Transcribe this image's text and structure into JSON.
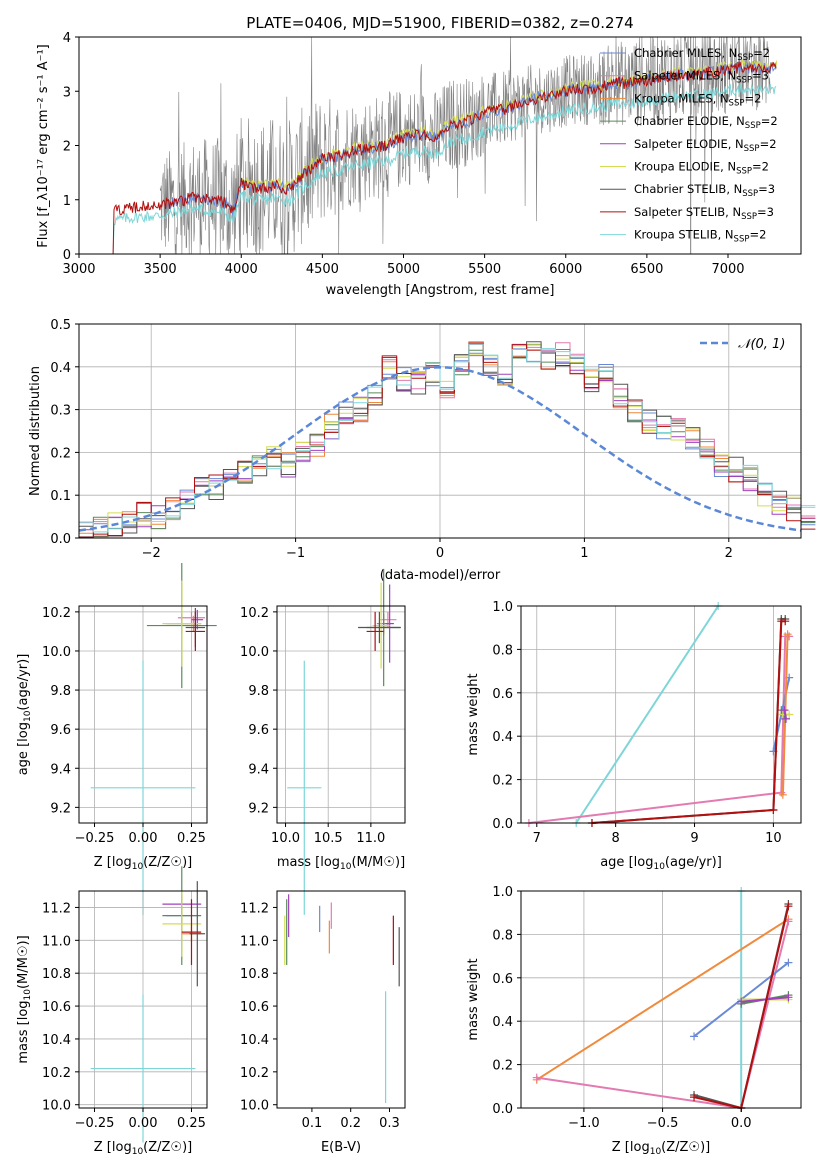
{
  "colors": {
    "chabrier_miles": "#6a8ad6",
    "salpeter_miles": "#e37ab0",
    "kroupa_miles": "#f08a3c",
    "chabrier_elodie": "#5b8a5b",
    "salpeter_elodie": "#a040c0",
    "kroupa_elodie": "#d4dc56",
    "chabrier_stelib": "#555555",
    "salpeter_stelib": "#b01010",
    "kroupa_stelib": "#7fd6d8",
    "observed": "#808080",
    "normal": "#5b88d6",
    "grid": "#b0b0b0"
  },
  "chart_data": [
    {
      "id": "spectrum",
      "type": "line",
      "title": "PLATE=0406, MJD=51900, FIBERID=0382, z=0.274",
      "xlabel": "wavelength [Angstrom, rest frame]",
      "ylabel": "Flux [f_λ10⁻¹⁷ erg cm⁻² s⁻¹ A⁻¹]",
      "xlim": [
        3000,
        7450
      ],
      "ylim": [
        0,
        4
      ],
      "xticks": [
        "3000",
        "3500",
        "4000",
        "4500",
        "5000",
        "5500",
        "6000",
        "6500",
        "7000"
      ],
      "yticks": [
        "0",
        "1",
        "2",
        "3",
        "4"
      ],
      "grid": false,
      "legend_position": "right",
      "series": [
        {
          "name": "Chabrier MILES, NSSP=2",
          "label_main": "Chabrier MILES, N",
          "label_sub": "SSP",
          "label_tail": "=2"
        },
        {
          "name": "Salpeter MILES, NSSP=3",
          "label_main": "Salpeter MILES, N",
          "label_sub": "SSP",
          "label_tail": "=3"
        },
        {
          "name": "Kroupa MILES, NSSP=2",
          "label_main": "Kroupa MILES, N",
          "label_sub": "SSP",
          "label_tail": "=2"
        },
        {
          "name": "Chabrier ELODIE, NSSP=2",
          "label_main": "Chabrier ELODIE, N",
          "label_sub": "SSP",
          "label_tail": "=2"
        },
        {
          "name": "Salpeter ELODIE, NSSP=2",
          "label_main": "Salpeter ELODIE, N",
          "label_sub": "SSP",
          "label_tail": "=2"
        },
        {
          "name": "Kroupa ELODIE, NSSP=2",
          "label_main": "Kroupa ELODIE, N",
          "label_sub": "SSP",
          "label_tail": "=2"
        },
        {
          "name": "Chabrier STELIB, NSSP=3",
          "label_main": "Chabrier STELIB, N",
          "label_sub": "SSP",
          "label_tail": "=3"
        },
        {
          "name": "Salpeter STELIB, NSSP=3",
          "label_main": "Salpeter STELIB, N",
          "label_sub": "SSP",
          "label_tail": "=3"
        },
        {
          "name": "Kroupa STELIB, NSSP=2",
          "label_main": "Kroupa STELIB, N",
          "label_sub": "SSP",
          "label_tail": "=2"
        }
      ],
      "model_continuum": {
        "x": [
          3210,
          3300,
          3400,
          3500,
          3600,
          3700,
          3800,
          3900,
          3950,
          4000,
          4100,
          4200,
          4300,
          4400,
          4500,
          4600,
          4700,
          4800,
          4900,
          5000,
          5100,
          5200,
          5300,
          5400,
          5500,
          5600,
          5700,
          5800,
          5900,
          6000,
          6100,
          6200,
          6300,
          6400,
          6500,
          6600,
          6700,
          6800,
          6900,
          7000,
          7100,
          7200,
          7300
        ],
        "y": [
          0.8,
          0.85,
          0.88,
          0.9,
          0.95,
          1.05,
          1.0,
          0.95,
          0.8,
          1.3,
          1.2,
          1.25,
          1.2,
          1.5,
          1.75,
          1.8,
          1.9,
          1.95,
          2.0,
          2.15,
          2.2,
          2.15,
          2.4,
          2.45,
          2.6,
          2.65,
          2.75,
          2.85,
          2.9,
          3.0,
          3.05,
          3.05,
          3.15,
          3.15,
          3.2,
          3.25,
          3.3,
          3.3,
          3.35,
          3.4,
          3.45,
          3.4,
          3.45
        ]
      },
      "observed_envelope": {
        "x": [
          3500,
          3700,
          3900,
          4100,
          4300,
          4500,
          4700,
          4900,
          5100,
          5300,
          5500,
          5700,
          5900,
          6100,
          6300,
          6500,
          6700,
          6900,
          7100,
          7250
        ],
        "amp": [
          0.9,
          1.0,
          1.1,
          1.2,
          1.2,
          1.1,
          0.9,
          0.9,
          0.8,
          0.8,
          0.7,
          0.6,
          0.6,
          0.6,
          0.7,
          0.8,
          0.8,
          0.8,
          0.7,
          0.7
        ]
      }
    },
    {
      "id": "residual_histogram",
      "type": "bar",
      "xlabel": "(data-model)/error",
      "ylabel": "Normed distribution",
      "xlim": [
        -2.5,
        2.5
      ],
      "ylim": [
        0,
        0.5
      ],
      "xticks": [
        "−2",
        "−1",
        "0",
        "1",
        "2"
      ],
      "yticks": [
        "0.0",
        "0.1",
        "0.2",
        "0.3",
        "0.4",
        "0.5"
      ],
      "grid": true,
      "legend_position": "top-right",
      "normal_label": "𝒩(0, 1)",
      "bin_width": 0.1,
      "bin_start": -2.5,
      "series_base": [
        0.012,
        0.02,
        0.03,
        0.04,
        0.055,
        0.05,
        0.07,
        0.09,
        0.13,
        0.12,
        0.14,
        0.15,
        0.17,
        0.19,
        0.17,
        0.2,
        0.22,
        0.26,
        0.29,
        0.3,
        0.34,
        0.4,
        0.37,
        0.36,
        0.38,
        0.35,
        0.41,
        0.44,
        0.4,
        0.38,
        0.43,
        0.44,
        0.42,
        0.43,
        0.4,
        0.37,
        0.38,
        0.33,
        0.3,
        0.27,
        0.26,
        0.25,
        0.23,
        0.21,
        0.17,
        0.16,
        0.14,
        0.1,
        0.08,
        0.07,
        0.05
      ]
    },
    {
      "id": "age_vs_Z",
      "type": "scatter",
      "xlabel": "Z [log10(Z/Z☉)]",
      "ylabel": "age  [log10(age/yr)]",
      "xlim": [
        -0.33,
        0.33
      ],
      "ylim": [
        9.12,
        10.23
      ],
      "xticks": [
        "−0.25",
        "0.00",
        "0.25"
      ],
      "xtick_values": [
        -0.25,
        0.0,
        0.25
      ],
      "yticks": [
        "9.2",
        "9.4",
        "9.6",
        "9.8",
        "10.0",
        "10.2"
      ],
      "ytick_values": [
        9.2,
        9.4,
        9.6,
        9.8,
        10.0,
        10.2
      ],
      "grid": true,
      "points": [
        {
          "series": "Kroupa STELIB, NSSP=2",
          "x": 0.0,
          "y": 9.3,
          "xerr": 0.27,
          "yerr": 0.65
        },
        {
          "series": "Chabrier MILES, NSSP=2",
          "x": 0.2,
          "y": 10.14,
          "xerr": 0.08,
          "yerr": 0.05
        },
        {
          "series": "Salpeter MILES, NSSP=3",
          "x": 0.25,
          "y": 10.17,
          "xerr": 0.07,
          "yerr": 0.03
        },
        {
          "series": "Kroupa MILES, NSSP=2",
          "x": 0.26,
          "y": 10.14,
          "xerr": 0.04,
          "yerr": 0.04
        },
        {
          "series": "Chabrier ELODIE, NSSP=2",
          "x": 0.2,
          "y": 10.13,
          "xerr": 0.18,
          "yerr": 0.32
        },
        {
          "series": "Salpeter ELODIE, NSSP=2",
          "x": 0.28,
          "y": 10.16,
          "xerr": 0.03,
          "yerr": 0.05
        },
        {
          "series": "Kroupa ELODIE, NSSP=2",
          "x": 0.2,
          "y": 10.14,
          "xerr": 0.1,
          "yerr": 0.22
        },
        {
          "series": "Chabrier STELIB, NSSP=3",
          "x": 0.27,
          "y": 10.12,
          "xerr": 0.05,
          "yerr": 0.1
        },
        {
          "series": "Salpeter STELIB, NSSP=3",
          "x": 0.27,
          "y": 10.1,
          "xerr": 0.05,
          "yerr": 0.1
        }
      ]
    },
    {
      "id": "age_vs_mass",
      "type": "scatter",
      "xlabel": "mass [log10(M/M☉)]",
      "ylabel": "",
      "xlim": [
        9.9,
        11.4
      ],
      "ylim": [
        9.12,
        10.23
      ],
      "xticks": [
        "10.0",
        "10.5",
        "11.0"
      ],
      "xtick_values": [
        10.0,
        10.5,
        11.0
      ],
      "yticks": [
        "9.2",
        "9.4",
        "9.6",
        "9.8",
        "10.0",
        "10.2"
      ],
      "ytick_values": [
        9.2,
        9.4,
        9.6,
        9.8,
        10.0,
        10.2
      ],
      "grid": true,
      "points": [
        {
          "series": "Kroupa STELIB, NSSP=2",
          "x": 10.22,
          "y": 9.3,
          "xerr": 0.2,
          "yerr": 0.65
        },
        {
          "series": "Chabrier MILES, NSSP=2",
          "x": 11.15,
          "y": 10.14,
          "xerr": 0.08,
          "yerr": 0.05
        },
        {
          "series": "Salpeter MILES, NSSP=3",
          "x": 11.2,
          "y": 10.16,
          "xerr": 0.1,
          "yerr": 0.04
        },
        {
          "series": "Kroupa MILES, NSSP=2",
          "x": 11.15,
          "y": 10.13,
          "xerr": 0.06,
          "yerr": 0.05
        },
        {
          "series": "Chabrier ELODIE, NSSP=2",
          "x": 11.15,
          "y": 10.12,
          "xerr": 0.2,
          "yerr": 0.3
        },
        {
          "series": "Salpeter ELODIE, NSSP=2",
          "x": 11.22,
          "y": 10.14,
          "xerr": 0.05,
          "yerr": 0.2
        },
        {
          "series": "Kroupa ELODIE, NSSP=2",
          "x": 11.12,
          "y": 10.13,
          "xerr": 0.1,
          "yerr": 0.22
        },
        {
          "series": "Chabrier STELIB, NSSP=3",
          "x": 11.1,
          "y": 10.12,
          "xerr": 0.25,
          "yerr": 0.08
        },
        {
          "series": "Salpeter STELIB, NSSP=3",
          "x": 11.05,
          "y": 10.1,
          "xerr": 0.1,
          "yerr": 0.1
        }
      ]
    },
    {
      "id": "weight_vs_age",
      "type": "line",
      "xlabel": "age  [log10(age/yr)]",
      "ylabel": "mass weight",
      "xlim": [
        6.8,
        10.35
      ],
      "ylim": [
        0,
        1
      ],
      "xticks": [
        "7",
        "8",
        "9",
        "10"
      ],
      "xtick_values": [
        7,
        8,
        9,
        10
      ],
      "yticks": [
        "0.0",
        "0.2",
        "0.4",
        "0.6",
        "0.8",
        "1.0"
      ],
      "ytick_values": [
        0,
        0.2,
        0.4,
        0.6,
        0.8,
        1.0
      ],
      "grid": true,
      "lines": [
        {
          "series": "Kroupa STELIB, NSSP=2",
          "x": [
            7.5,
            9.3
          ],
          "y": [
            0,
            1
          ]
        },
        {
          "series": "Salpeter MILES, NSSP=3",
          "x": [
            6.9,
            10.1,
            10.15,
            10.2
          ],
          "y": [
            0,
            0.14,
            0.86,
            0.86
          ]
        },
        {
          "series": "Chabrier MILES, NSSP=2",
          "x": [
            10.0,
            10.2
          ],
          "y": [
            0.33,
            0.67
          ]
        },
        {
          "series": "Kroupa MILES, NSSP=2",
          "x": [
            10.12,
            10.18
          ],
          "y": [
            0.13,
            0.87
          ]
        },
        {
          "series": "Chabrier ELODIE, NSSP=2",
          "x": [
            10.1,
            10.15
          ],
          "y": [
            0.52,
            0.48
          ]
        },
        {
          "series": "Kroupa ELODIE, NSSP=2",
          "x": [
            10.12,
            10.2
          ],
          "y": [
            0.5,
            0.5
          ]
        },
        {
          "series": "Salpeter ELODIE, NSSP=2",
          "x": [
            10.14,
            10.16
          ],
          "y": [
            0.52,
            0.48
          ]
        },
        {
          "series": "Chabrier STELIB, NSSP=3",
          "x": [
            7.7,
            10.0,
            10.1,
            10.15
          ],
          "y": [
            0,
            0.06,
            0.94,
            0.94
          ]
        },
        {
          "series": "Salpeter STELIB, NSSP=3",
          "x": [
            7.7,
            10.0,
            10.1,
            10.15
          ],
          "y": [
            0,
            0.06,
            0.93,
            0.93
          ]
        }
      ]
    },
    {
      "id": "mass_vs_Z",
      "type": "scatter",
      "xlabel": "Z [log10(Z/Z☉)]",
      "ylabel": "mass [log10(M/M☉)]",
      "xlim": [
        -0.33,
        0.33
      ],
      "ylim": [
        9.98,
        11.3
      ],
      "xticks": [
        "−0.25",
        "0.00",
        "0.25"
      ],
      "xtick_values": [
        -0.25,
        0.0,
        0.25
      ],
      "yticks": [
        "10.0",
        "10.2",
        "10.4",
        "10.6",
        "10.8",
        "11.0",
        "11.2"
      ],
      "ytick_values": [
        10.0,
        10.2,
        10.4,
        10.6,
        10.8,
        11.0,
        11.2
      ],
      "grid": true,
      "points": [
        {
          "series": "Kroupa STELIB, NSSP=2",
          "x": 0.0,
          "y": 10.22,
          "xerr": 0.27,
          "yerr": 0.45
        },
        {
          "series": "Chabrier MILES, NSSP=2",
          "x": 0.2,
          "y": 11.15,
          "xerr": 0.08,
          "yerr": 0.05
        },
        {
          "series": "Salpeter ELODIE, NSSP=2",
          "x": 0.2,
          "y": 11.22,
          "xerr": 0.1,
          "yerr": 0.06
        },
        {
          "series": "Chabrier ELODIE, NSSP=2",
          "x": 0.2,
          "y": 11.15,
          "xerr": 0.1,
          "yerr": 0.3
        },
        {
          "series": "Kroupa ELODIE, NSSP=2",
          "x": 0.2,
          "y": 11.1,
          "xerr": 0.1,
          "yerr": 0.2
        },
        {
          "series": "Kroupa MILES, NSSP=2",
          "x": 0.25,
          "y": 11.04,
          "xerr": 0.05,
          "yerr": 0.05
        },
        {
          "series": "Chabrier STELIB, NSSP=3",
          "x": 0.28,
          "y": 11.04,
          "xerr": 0.04,
          "yerr": 0.32
        },
        {
          "series": "Salpeter STELIB, NSSP=3",
          "x": 0.25,
          "y": 11.05,
          "xerr": 0.05,
          "yerr": 0.2
        }
      ]
    },
    {
      "id": "mass_vs_ebv",
      "type": "scatter",
      "xlabel": "E(B-V)",
      "ylabel": "",
      "xlim": [
        0.01,
        0.34
      ],
      "ylim": [
        9.98,
        11.3
      ],
      "xticks": [
        "0.1",
        "0.2",
        "0.3"
      ],
      "xtick_values": [
        0.1,
        0.2,
        0.3
      ],
      "yticks": [
        "10.0",
        "10.2",
        "10.4",
        "10.6",
        "10.8",
        "11.0",
        "11.2"
      ],
      "ytick_values": [
        10.0,
        10.2,
        10.4,
        10.6,
        10.8,
        11.0,
        11.2
      ],
      "grid": false,
      "points": [
        {
          "series": "Kroupa ELODIE, NSSP=2",
          "x": 0.03,
          "y": 11.0,
          "xerr": 0.0,
          "yerr": 0.15
        },
        {
          "series": "Salpeter ELODIE, NSSP=2",
          "x": 0.04,
          "y": 11.15,
          "xerr": 0.0,
          "yerr": 0.13
        },
        {
          "series": "Chabrier ELODIE, NSSP=2",
          "x": 0.035,
          "y": 11.05,
          "xerr": 0.0,
          "yerr": 0.2
        },
        {
          "series": "Chabrier MILES, NSSP=2",
          "x": 0.12,
          "y": 11.13,
          "xerr": 0.0,
          "yerr": 0.08
        },
        {
          "series": "Salpeter MILES, NSSP=3",
          "x": 0.15,
          "y": 11.15,
          "xerr": 0.0,
          "yerr": 0.08
        },
        {
          "series": "Kroupa MILES, NSSP=2",
          "x": 0.145,
          "y": 11.02,
          "xerr": 0.0,
          "yerr": 0.1
        },
        {
          "series": "Kroupa STELIB, NSSP=2",
          "x": 0.29,
          "y": 10.35,
          "xerr": 0.0,
          "yerr": 0.34
        },
        {
          "series": "Salpeter STELIB, NSSP=3",
          "x": 0.31,
          "y": 11.0,
          "xerr": 0.0,
          "yerr": 0.15
        },
        {
          "series": "Chabrier STELIB, NSSP=3",
          "x": 0.325,
          "y": 10.9,
          "xerr": 0.0,
          "yerr": 0.18
        }
      ]
    },
    {
      "id": "weight_vs_Z",
      "type": "line",
      "xlabel": "Z [log10(Z/Z☉)]",
      "ylabel": "mass weight",
      "xlim": [
        -1.4,
        0.38
      ],
      "ylim": [
        0,
        1
      ],
      "xticks": [
        "−1.0",
        "−0.5",
        "0.0"
      ],
      "xtick_values": [
        -1.0,
        -0.5,
        0.0
      ],
      "yticks": [
        "0.0",
        "0.2",
        "0.4",
        "0.6",
        "0.8",
        "1.0"
      ],
      "ytick_values": [
        0,
        0.2,
        0.4,
        0.6,
        0.8,
        1.0
      ],
      "grid": true,
      "lines": [
        {
          "series": "Kroupa STELIB, NSSP=2",
          "x": [
            0,
            0
          ],
          "y": [
            0,
            1
          ]
        },
        {
          "series": "Kroupa MILES, NSSP=2",
          "x": [
            -1.3,
            0.3
          ],
          "y": [
            0.13,
            0.87
          ]
        },
        {
          "series": "Salpeter MILES, NSSP=3",
          "x": [
            -1.3,
            0.0,
            0.3
          ],
          "y": [
            0.14,
            0.0,
            0.86
          ]
        },
        {
          "series": "Chabrier MILES, NSSP=2",
          "x": [
            -0.3,
            0.0,
            0.3
          ],
          "y": [
            0.33,
            0.5,
            0.67
          ]
        },
        {
          "series": "Chabrier ELODIE, NSSP=2",
          "x": [
            0.0,
            0.3
          ],
          "y": [
            0.48,
            0.52
          ]
        },
        {
          "series": "Kroupa ELODIE, NSSP=2",
          "x": [
            0.0,
            0.3
          ],
          "y": [
            0.5,
            0.5
          ]
        },
        {
          "series": "Salpeter ELODIE, NSSP=2",
          "x": [
            0.0,
            0.3
          ],
          "y": [
            0.49,
            0.51
          ]
        },
        {
          "series": "Chabrier STELIB, NSSP=3",
          "x": [
            -0.3,
            0.0,
            0.3
          ],
          "y": [
            0.06,
            0.0,
            0.94
          ]
        },
        {
          "series": "Salpeter STELIB, NSSP=3",
          "x": [
            -0.3,
            0.0,
            0.3
          ],
          "y": [
            0.05,
            0.0,
            0.93
          ]
        }
      ]
    }
  ]
}
